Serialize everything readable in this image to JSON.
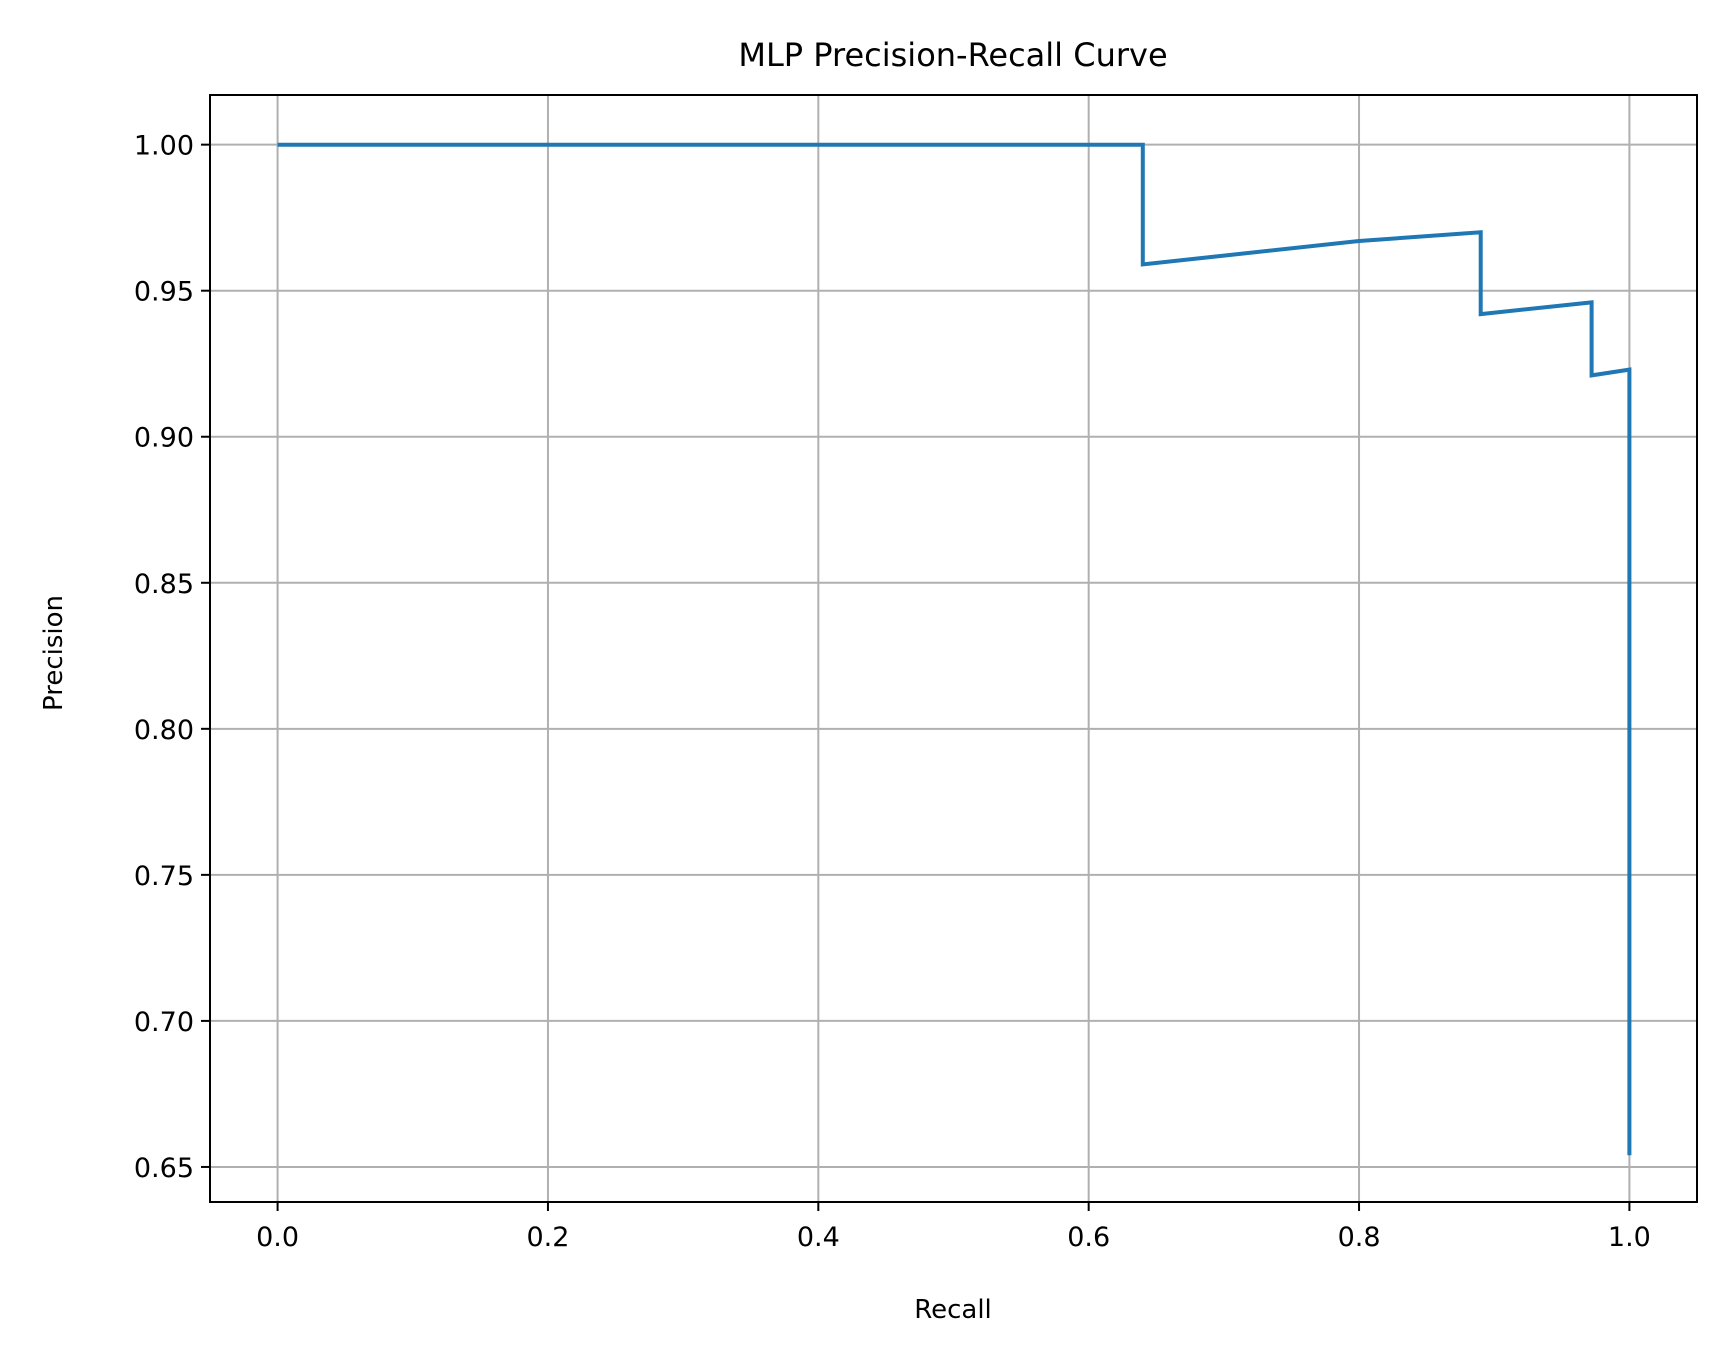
{
  "chart_data": {
    "type": "line",
    "title": "MLP Precision-Recall Curve",
    "xlabel": "Recall",
    "ylabel": "Precision",
    "xlim": [
      -0.05,
      1.05
    ],
    "ylim": [
      0.638,
      1.017
    ],
    "xticks": [
      "0.0",
      "0.2",
      "0.4",
      "0.6",
      "0.8",
      "1.0"
    ],
    "yticks": [
      "0.65",
      "0.70",
      "0.75",
      "0.80",
      "0.85",
      "0.90",
      "0.95",
      "1.00"
    ],
    "grid": true,
    "series": [
      {
        "color": "#1f77b4",
        "x": [
          0.0,
          0.64,
          0.64,
          0.7,
          0.8,
          0.89,
          0.89,
          0.972,
          0.972,
          1.0,
          1.0
        ],
        "y": [
          1.0,
          1.0,
          0.959,
          0.962,
          0.967,
          0.97,
          0.942,
          0.946,
          0.921,
          0.923,
          0.654
        ]
      }
    ]
  }
}
